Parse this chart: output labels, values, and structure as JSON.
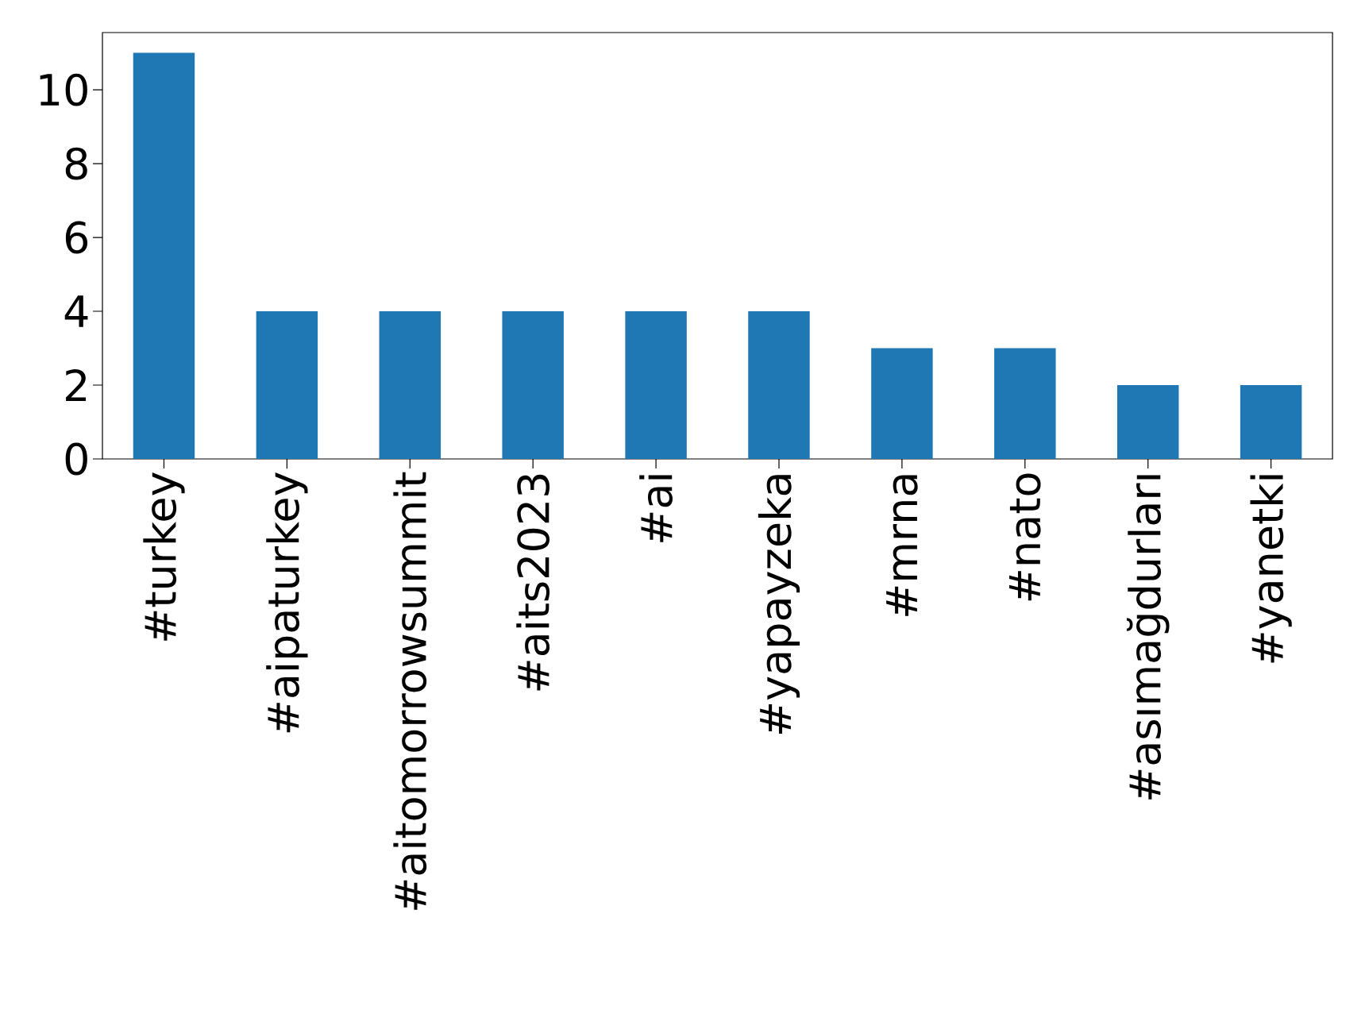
{
  "chart_data": {
    "type": "bar",
    "categories": [
      "#turkey",
      "#aipaturkey",
      "#aitomorrowsummit",
      "#aits2023",
      "#ai",
      "#yapayzeka",
      "#mrna",
      "#nato",
      "#asımağdurları",
      "#yanetki"
    ],
    "values": [
      11,
      4,
      4,
      4,
      4,
      4,
      3,
      3,
      2,
      2
    ],
    "color": "#1f77b4",
    "ylim": [
      0,
      11.55
    ],
    "yticks": [
      0,
      2,
      4,
      6,
      8,
      10
    ]
  }
}
